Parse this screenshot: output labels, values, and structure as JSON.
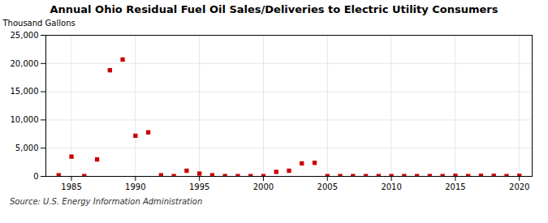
{
  "chart_data": {
    "type": "scatter",
    "title": "Annual Ohio Residual Fuel Oil Sales/Deliveries to Electric Utility Consumers",
    "ylabel": "Thousand Gallons",
    "source": "Source: U.S. Energy Information Administration",
    "x": [
      1984,
      1985,
      1986,
      1987,
      1988,
      1989,
      1990,
      1991,
      1992,
      1993,
      1994,
      1995,
      1996,
      1997,
      1998,
      1999,
      2000,
      2001,
      2002,
      2003,
      2004,
      2005,
      2006,
      2007,
      2008,
      2009,
      2010,
      2011,
      2012,
      2013,
      2014,
      2015,
      2016,
      2017,
      2018,
      2019,
      2020
    ],
    "values": [
      200,
      3500,
      50,
      3000,
      18800,
      20700,
      7200,
      7800,
      200,
      50,
      1000,
      500,
      200,
      50,
      50,
      50,
      50,
      800,
      1000,
      2300,
      2400,
      50,
      50,
      50,
      50,
      50,
      50,
      50,
      50,
      50,
      50,
      100,
      50,
      100,
      100,
      50,
      100
    ],
    "color": "#cc0000",
    "marker": "square",
    "xlim": [
      1983,
      2021
    ],
    "ylim": [
      0,
      25000
    ],
    "xticks": [
      1985,
      1990,
      1995,
      2000,
      2005,
      2010,
      2015,
      2020
    ],
    "yticks": [
      0,
      {
        "value": 5000,
        "label": "5,000"
      },
      {
        "value": 10000,
        "label": "10,000"
      },
      {
        "value": 15000,
        "label": "15,000"
      },
      {
        "value": 20000,
        "label": "20,000"
      },
      {
        "value": 25000,
        "label": "25,000"
      }
    ],
    "grid": true
  }
}
